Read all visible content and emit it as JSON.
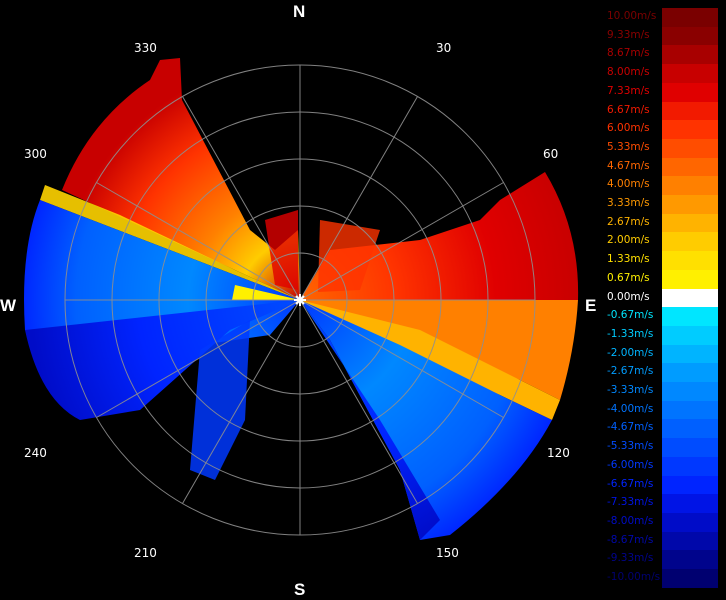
{
  "compass": {
    "north": "N",
    "south": "S",
    "east": "E",
    "west": "W"
  },
  "bearings": [
    "30",
    "60",
    "120",
    "150",
    "210",
    "240",
    "300",
    "330"
  ],
  "legend": [
    {
      "label": "10.00m/s",
      "color": "#7a0000"
    },
    {
      "label": "9.33m/s",
      "color": "#8a0000"
    },
    {
      "label": "8.67m/s",
      "color": "#a80000"
    },
    {
      "label": "8.00m/s",
      "color": "#c80000"
    },
    {
      "label": "7.33m/s",
      "color": "#e00000"
    },
    {
      "label": "6.67m/s",
      "color": "#f21a00"
    },
    {
      "label": "6.00m/s",
      "color": "#ff3300"
    },
    {
      "label": "5.33m/s",
      "color": "#ff4d00"
    },
    {
      "label": "4.67m/s",
      "color": "#ff6600"
    },
    {
      "label": "4.00m/s",
      "color": "#ff8000"
    },
    {
      "label": "3.33m/s",
      "color": "#ff9900"
    },
    {
      "label": "2.67m/s",
      "color": "#ffb300"
    },
    {
      "label": "2.00m/s",
      "color": "#ffcc00"
    },
    {
      "label": "1.33m/s",
      "color": "#ffe000"
    },
    {
      "label": "0.67m/s",
      "color": "#fff000"
    },
    {
      "label": "0.00m/s",
      "color": "#ffffff"
    },
    {
      "label": "-0.67m/s",
      "color": "#00e6ff"
    },
    {
      "label": "-1.33m/s",
      "color": "#00ccff"
    },
    {
      "label": "-2.00m/s",
      "color": "#00b4ff"
    },
    {
      "label": "-2.67m/s",
      "color": "#009cff"
    },
    {
      "label": "-3.33m/s",
      "color": "#0088ff"
    },
    {
      "label": "-4.00m/s",
      "color": "#0074ff"
    },
    {
      "label": "-4.67m/s",
      "color": "#0060ff"
    },
    {
      "label": "-5.33m/s",
      "color": "#004cff"
    },
    {
      "label": "-6.00m/s",
      "color": "#0038ff"
    },
    {
      "label": "-6.67m/s",
      "color": "#0024ff"
    },
    {
      "label": "-7.33m/s",
      "color": "#0014e6"
    },
    {
      "label": "-8.00m/s",
      "color": "#000cc8"
    },
    {
      "label": "-8.67m/s",
      "color": "#0008aa"
    },
    {
      "label": "-9.33m/s",
      "color": "#00048c"
    },
    {
      "label": "-10.00m/s",
      "color": "#000070"
    }
  ]
}
